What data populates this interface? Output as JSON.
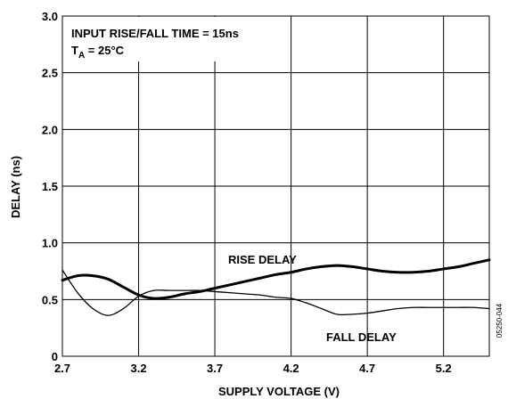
{
  "chart_data": {
    "type": "line",
    "xlabel": "SUPPLY VOLTAGE (V)",
    "ylabel": "DELAY (ns)",
    "xlim": [
      2.7,
      5.5
    ],
    "ylim": [
      0,
      3.0
    ],
    "x_ticks": [
      "2.7",
      "3.2",
      "3.7",
      "4.2",
      "4.7",
      "5.2"
    ],
    "y_ticks": [
      "0",
      "0.5",
      "1.0",
      "1.5",
      "2.0",
      "2.5",
      "3.0"
    ],
    "grid": true,
    "annotation_lines": [
      "INPUT RISE/FALL TIME = 15ns",
      "T",
      "A",
      " = 25°C"
    ],
    "figure_id": "05250-044",
    "series": [
      {
        "name": "RISE DELAY",
        "stroke": "bold",
        "x": [
          2.7,
          2.8,
          2.9,
          3.0,
          3.1,
          3.2,
          3.3,
          3.4,
          3.5,
          3.6,
          3.7,
          3.8,
          3.9,
          4.0,
          4.1,
          4.2,
          4.3,
          4.4,
          4.5,
          4.6,
          4.7,
          4.8,
          4.9,
          5.0,
          5.1,
          5.2,
          5.3,
          5.4,
          5.5
        ],
        "values": [
          0.67,
          0.71,
          0.71,
          0.68,
          0.61,
          0.54,
          0.51,
          0.52,
          0.55,
          0.57,
          0.6,
          0.63,
          0.66,
          0.69,
          0.72,
          0.74,
          0.77,
          0.79,
          0.8,
          0.79,
          0.77,
          0.75,
          0.74,
          0.74,
          0.75,
          0.77,
          0.79,
          0.82,
          0.85
        ]
      },
      {
        "name": "FALL DELAY",
        "stroke": "thin",
        "x": [
          2.7,
          2.8,
          2.9,
          3.0,
          3.1,
          3.2,
          3.3,
          3.4,
          3.5,
          3.6,
          3.7,
          3.8,
          3.9,
          4.0,
          4.1,
          4.2,
          4.3,
          4.4,
          4.5,
          4.6,
          4.7,
          4.8,
          4.9,
          5.0,
          5.1,
          5.2,
          5.3,
          5.4,
          5.5
        ],
        "values": [
          0.76,
          0.56,
          0.42,
          0.36,
          0.42,
          0.53,
          0.58,
          0.58,
          0.58,
          0.58,
          0.57,
          0.56,
          0.55,
          0.54,
          0.52,
          0.51,
          0.47,
          0.42,
          0.37,
          0.37,
          0.38,
          0.4,
          0.42,
          0.43,
          0.43,
          0.43,
          0.43,
          0.43,
          0.42
        ]
      }
    ],
    "labels": {
      "rise": "RISE DELAY",
      "fall": "FALL DELAY"
    }
  }
}
